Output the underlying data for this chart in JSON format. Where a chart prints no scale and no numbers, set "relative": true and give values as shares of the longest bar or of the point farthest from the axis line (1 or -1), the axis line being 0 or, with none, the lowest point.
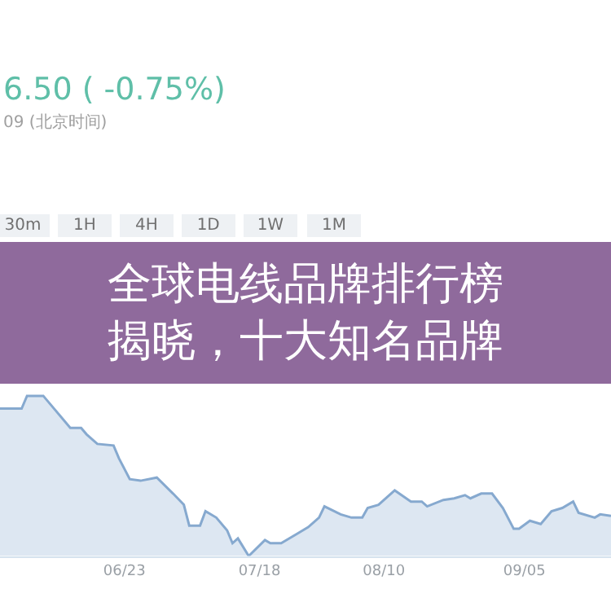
{
  "chart_data": {
    "type": "area",
    "relative": true,
    "title": "全球电线品牌排行榜揭晓，十大知名品牌",
    "annotations": [
      "6.50 ( -0.75%)",
      "09 (北京时间)",
      "30m",
      "1H",
      "4H",
      "1D",
      "1W",
      "1M"
    ],
    "x": [
      "--05-31",
      "--06-04",
      "--06-05",
      "--06-08",
      "--06-10",
      "--06-13",
      "--06-15",
      "--06-16",
      "--06-18",
      "--06-21",
      "--06-22",
      "--06-24",
      "--06-26",
      "--06-29",
      "--07-02",
      "--07-04",
      "--07-05",
      "--07-07",
      "--07-08",
      "--07-10",
      "--07-12",
      "--07-13",
      "--07-14",
      "--07-16",
      "--07-19",
      "--07-20",
      "--07-22",
      "--07-25",
      "--07-27",
      "--07-29",
      "--07-30",
      "--08-02",
      "--08-04",
      "--08-06",
      "--08-07",
      "--08-09",
      "--08-12",
      "--08-15",
      "--08-17",
      "--08-18",
      "--08-21",
      "--08-23",
      "--08-25",
      "--08-26",
      "--08-28",
      "--08-30",
      "--09-01",
      "--09-03",
      "--09-04",
      "--09-06",
      "--09-08",
      "--09-10",
      "--09-12",
      "--09-14",
      "--09-15",
      "--09-18",
      "--09-19",
      "--09-21"
    ],
    "series": [
      {
        "color": "#86a9cf",
        "values": [
          0.92,
          0.92,
          1,
          1,
          0.92,
          0.8,
          0.8,
          0.76,
          0.7,
          0.69,
          0.61,
          0.48,
          0.47,
          0.49,
          0.39,
          0.32,
          0.19,
          0.19,
          0.28,
          0.24,
          0.16,
          0.08,
          0.11,
          0,
          0.1,
          0.08,
          0.08,
          0.14,
          0.18,
          0.24,
          0.31,
          0.26,
          0.24,
          0.24,
          0.3,
          0.32,
          0.41,
          0.34,
          0.34,
          0.31,
          0.35,
          0.36,
          0.38,
          0.36,
          0.39,
          0.39,
          0.3,
          0.17,
          0.17,
          0.22,
          0.2,
          0.28,
          0.3,
          0.34,
          0.27,
          0.24,
          0.26,
          0.25
        ]
      }
    ],
    "xlim": [
      "--05-31",
      "--09-21"
    ],
    "xticks": [
      {
        "value": "--06-23",
        "label": "06/23"
      },
      {
        "value": "--07-18",
        "label": "07/18"
      },
      {
        "value": "--08-10",
        "label": "08/10"
      },
      {
        "value": "--09-05",
        "label": "09/05"
      }
    ],
    "line_style": "solid"
  }
}
